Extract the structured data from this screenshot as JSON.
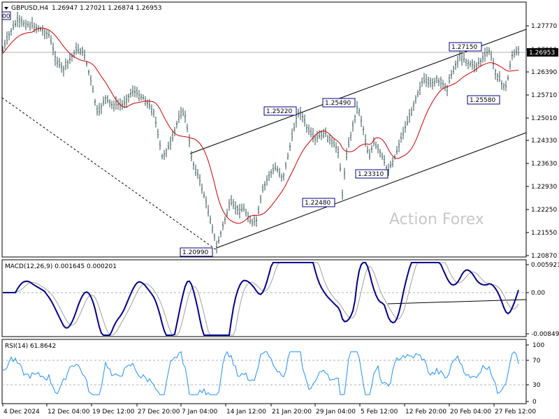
{
  "header": {
    "symbol": "GBPUSD,H4",
    "ohlc": "1.26947 1.27021 1.26874 1.26953"
  },
  "price_panel": {
    "y_ticks": [
      "1.27770",
      "1.27090",
      "1.26390",
      "1.25710",
      "1.25010",
      "1.24330",
      "1.23630",
      "1.22930",
      "1.22250",
      "1.21550",
      "1.20870"
    ],
    "current_price_label": "1.26953",
    "level_labels": [
      "1.20990",
      "1.25220",
      "1.25490",
      "1.22480",
      "1.23310",
      "1.27150",
      "1.25580"
    ],
    "partial_label": "00",
    "watermark": "Action Forex"
  },
  "macd_panel": {
    "title": "MACD(12,26,9) 0.001645 0.000201",
    "y_ticks": [
      "0.005921",
      "0.00",
      "-0.00849"
    ]
  },
  "rsi_panel": {
    "title": "RSI(14) 61.8642",
    "y_ticks": [
      "100",
      "70",
      "30",
      "0"
    ]
  },
  "time_labels": [
    "4 Dec 2024",
    "12 Dec 04:00",
    "19 Dec 12:00",
    "27 Dec 20:00",
    "7 Jan 04:00",
    "14 Jan 12:00",
    "21 Jan 20:00",
    "29 Jan 04:00",
    "5 Feb 12:00",
    "12 Feb 20:00",
    "20 Feb 04:00",
    "27 Feb 12:00"
  ],
  "colors": {
    "ma_line": "#cc0000",
    "macd_line": "#00008b",
    "signal_line": "#a0a0a0",
    "rsi_line": "#1e90ff",
    "candles": "#2f4f4f",
    "label_border": "#00008b"
  },
  "chart_data": {
    "type": "line",
    "x": [
      "4 Dec 2024",
      "12 Dec 04:00",
      "19 Dec 12:00",
      "27 Dec 20:00",
      "7 Jan 04:00",
      "14 Jan 12:00",
      "21 Jan 20:00",
      "29 Jan 04:00",
      "5 Feb 12:00",
      "12 Feb 20:00",
      "20 Feb 04:00",
      "27 Feb 12:00"
    ],
    "series": [
      {
        "values": [
          1.275,
          1.266,
          1.26,
          1.256,
          1.228,
          1.22,
          1.242,
          1.245,
          1.24,
          1.262,
          1.269,
          1.269
        ]
      }
    ],
    "ylim": [
      1.2087,
      1.281
    ],
    "swing_points": [
      1.2099,
      1.2522,
      1.2549,
      1.2248,
      1.2331,
      1.2715,
      1.2558
    ],
    "current": 1.26953,
    "macd": {
      "macd": 0.001645,
      "signal": 0.000201,
      "ylim": [
        -0.00849,
        0.005921
      ]
    },
    "rsi": {
      "value": 61.8642,
      "levels": [
        70,
        30
      ],
      "ylim": [
        0,
        100
      ]
    }
  }
}
